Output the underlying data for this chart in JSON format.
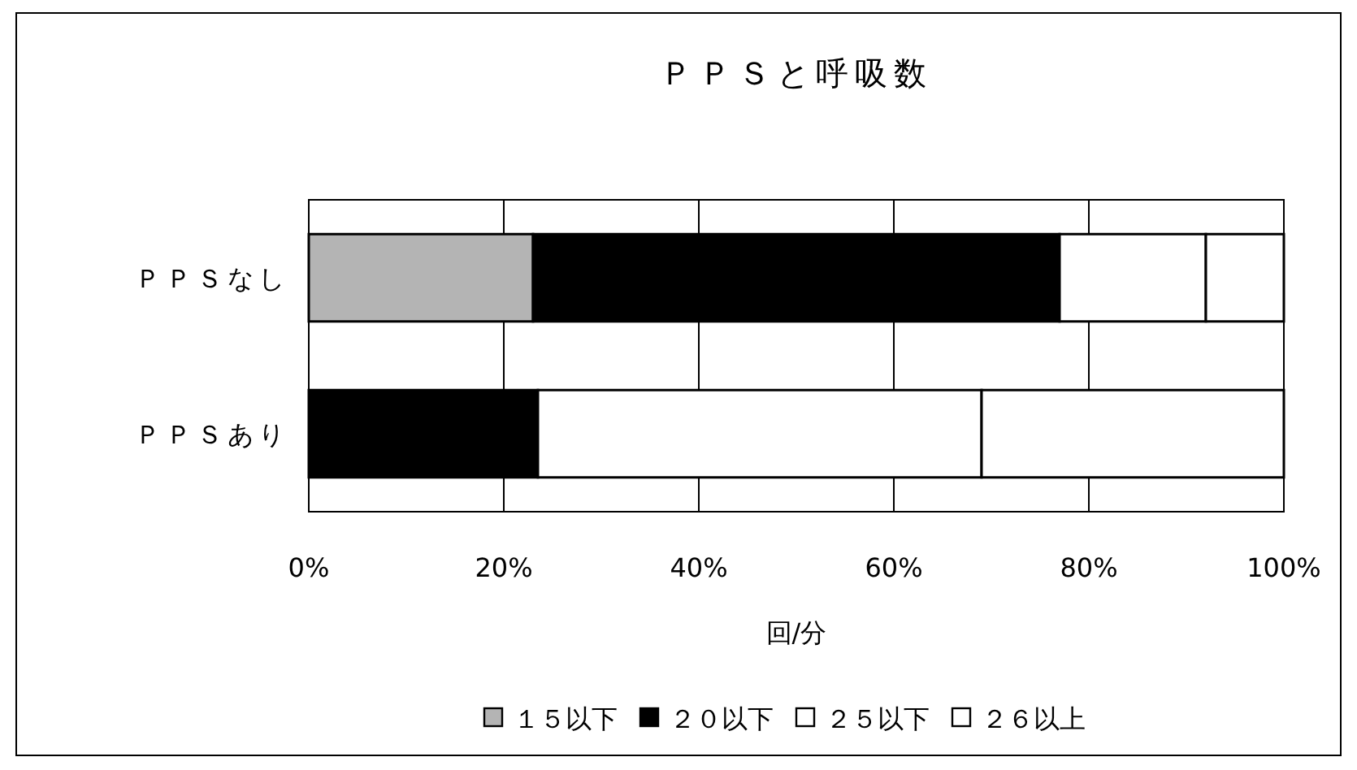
{
  "chart_data": {
    "type": "bar",
    "orientation": "horizontal",
    "stacked": true,
    "title": "ＰＰＳと呼吸数",
    "xlabel": "回/分",
    "categories": [
      "ＰＰＳなし",
      "ＰＰＳあり"
    ],
    "series": [
      {
        "name": "１５以下",
        "color": "#b4b4b4",
        "values": [
          23,
          0
        ]
      },
      {
        "name": "２０以下",
        "color": "#000000",
        "values": [
          54,
          23.5
        ]
      },
      {
        "name": "２５以下",
        "color": "#ffffff",
        "values": [
          15,
          45.5
        ]
      },
      {
        "name": "２６以上",
        "color": "#ffffff",
        "values": [
          8,
          31
        ]
      }
    ],
    "xlim": [
      0,
      100
    ],
    "xticks": [
      {
        "value": 0,
        "label": "0%"
      },
      {
        "value": 20,
        "label": "20%"
      },
      {
        "value": 40,
        "label": "40%"
      },
      {
        "value": 60,
        "label": "60%"
      },
      {
        "value": 80,
        "label": "80%"
      },
      {
        "value": 100,
        "label": "100%"
      }
    ],
    "grid": "x",
    "legend": "bottom"
  }
}
